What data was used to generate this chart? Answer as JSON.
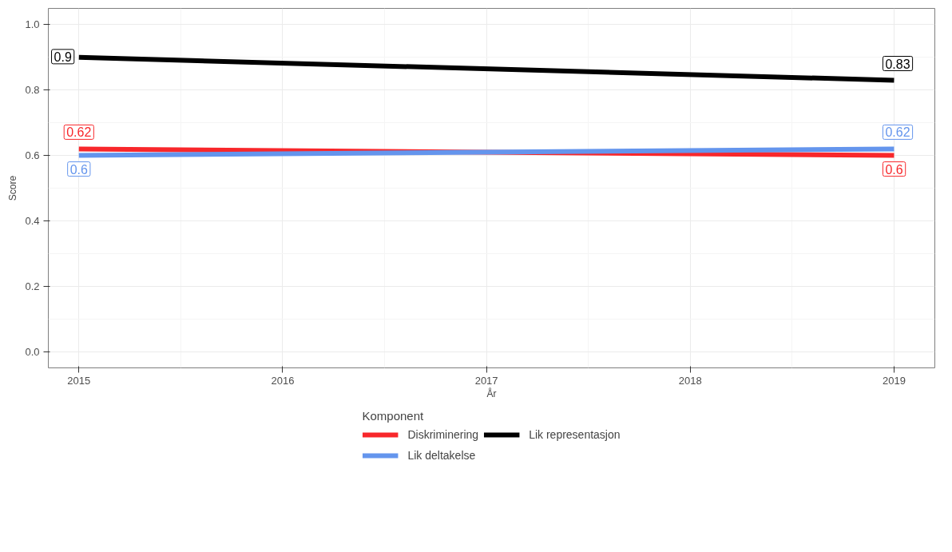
{
  "chart_data": {
    "type": "line",
    "xlabel": "År",
    "ylabel": "Score",
    "legend_title": "Komponent",
    "x": [
      2015,
      2019
    ],
    "series": [
      {
        "name": "Diskriminering",
        "color": "#f8272b",
        "values": [
          0.62,
          0.6
        ]
      },
      {
        "name": "Lik representasjon",
        "color": "#000000",
        "values": [
          0.9,
          0.83
        ]
      },
      {
        "name": "Lik deltakelse",
        "color": "#6495ed",
        "values": [
          0.6,
          0.62
        ]
      }
    ],
    "xlim": [
      2014.85,
      2019.2
    ],
    "ylim": [
      -0.05,
      1.05
    ],
    "xticks": [
      2015,
      2016,
      2017,
      2018,
      2019
    ],
    "yticks": [
      {
        "value": 0,
        "label": "0.0"
      },
      {
        "value": 0.2,
        "label": "0.2"
      },
      {
        "value": 0.4,
        "label": "0.4"
      },
      {
        "value": 0.6,
        "label": "0.6"
      },
      {
        "value": 0.8,
        "label": "0.8"
      },
      {
        "value": 1,
        "label": "1.0"
      }
    ],
    "grid": true,
    "legend": "bottom",
    "data_labels": true,
    "marker": "none",
    "line_style": "solid"
  }
}
